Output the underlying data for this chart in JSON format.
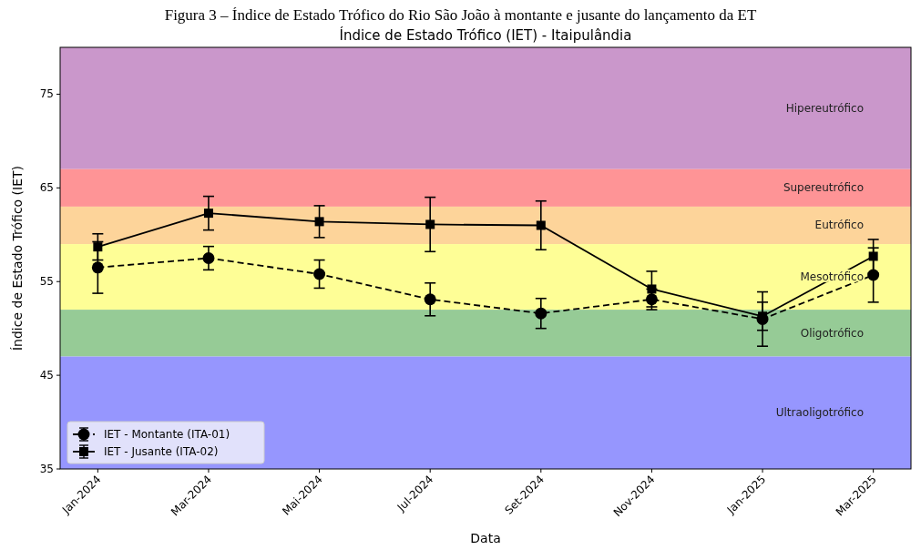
{
  "chart_data": {
    "type": "line",
    "title": "Índice de Estado Trófico (IET) - Itaipulândia",
    "xlabel": "Data",
    "ylabel": "Índice de Estado Trófico (IET)",
    "annotations": [
      "Figura 3 – Índice de Estado Trófico do Rio São João à montante e jusante do lançamento da ET"
    ],
    "categories": [
      "Jan-2024",
      "Mar-2024",
      "Mai-2024",
      "Jul-2024",
      "Set-2024",
      "Nov-2024",
      "Jan-2025",
      "Mar-2025"
    ],
    "series": [
      {
        "name": "IET - Montante (ITA-01)",
        "color": "#000000",
        "marker": "circle",
        "line_style": "dashed",
        "values": [
          56.5,
          57.5,
          55.8,
          53.1,
          51.6,
          53.1,
          51.0,
          55.7
        ],
        "errors": [
          2.75,
          1.25,
          1.5,
          1.75,
          1.6,
          1.1,
          2.9,
          2.9
        ]
      },
      {
        "name": "IET - Jusante (ITA-02)",
        "color": "#000000",
        "marker": "square",
        "line_style": "solid",
        "values": [
          58.7,
          62.3,
          61.4,
          61.1,
          61.0,
          54.2,
          51.3,
          57.7
        ],
        "errors": [
          1.4,
          1.8,
          1.7,
          2.9,
          2.6,
          1.9,
          1.5,
          1.8
        ]
      }
    ],
    "ylim": [
      35,
      80
    ],
    "yticks": [
      35,
      45,
      55,
      65,
      75
    ],
    "legend": "bottom left",
    "bands": [
      {
        "axis": "y",
        "from": 67,
        "to": 80,
        "label": "Hipereutrófico",
        "color": "#ca97cb"
      },
      {
        "axis": "y",
        "from": 63,
        "to": 67,
        "label": "Supereutrófico",
        "color": "#fe9496"
      },
      {
        "axis": "y",
        "from": 59,
        "to": 63,
        "label": "Eutrófico",
        "color": "#fdd49a"
      },
      {
        "axis": "y",
        "from": 52,
        "to": 59,
        "label": "Mesotrófico",
        "color": "#fefe96"
      },
      {
        "axis": "y",
        "from": 47,
        "to": 52,
        "label": "Oligotrófico",
        "color": "#96cb96"
      },
      {
        "axis": "y",
        "from": 35,
        "to": 47,
        "label": "Ultraoligotrófico",
        "color": "#9696fe"
      }
    ]
  }
}
